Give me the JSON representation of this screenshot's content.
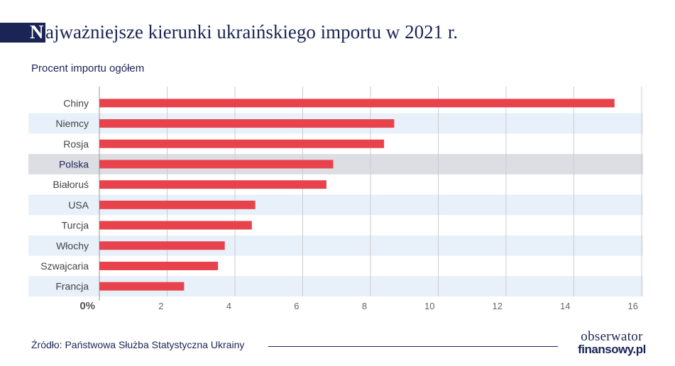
{
  "title": {
    "initial": "N",
    "rest": "ajważniejsze kierunki ukraińskiego importu w 2021 r."
  },
  "subtitle": "Procent importu ogółem",
  "source": "Źródło: Państwowa Służba Statystyczna Ukrainy",
  "logo": {
    "line1": "obserwator",
    "line2": "finansowy.pl"
  },
  "colors": {
    "bar": "#e8434d",
    "band": "#e8f0f9",
    "highlight_band": "#dcdee4",
    "navy": "#1a2556",
    "label": "#444444",
    "grid": "#cccccc"
  },
  "chart_data": {
    "type": "bar",
    "orientation": "horizontal",
    "categories": [
      "Chiny",
      "Niemcy",
      "Rosja",
      "Polska",
      "Białoruś",
      "USA",
      "Turcja",
      "Włochy",
      "Szwajcaria",
      "Francja"
    ],
    "values": [
      15.2,
      8.7,
      8.4,
      6.9,
      6.7,
      4.6,
      4.5,
      3.7,
      3.5,
      2.5
    ],
    "highlight": "Polska",
    "xlim": [
      0,
      16
    ],
    "xticks": [
      0,
      2,
      4,
      6,
      8,
      10,
      12,
      14,
      16
    ],
    "xtick_labels": [
      "0%",
      "2",
      "4",
      "6",
      "8",
      "10",
      "12",
      "14",
      "16"
    ],
    "grid": "vertical",
    "title": "Najważniejsze kierunki ukraińskiego importu w 2021 r.",
    "xlabel": "",
    "ylabel": ""
  }
}
